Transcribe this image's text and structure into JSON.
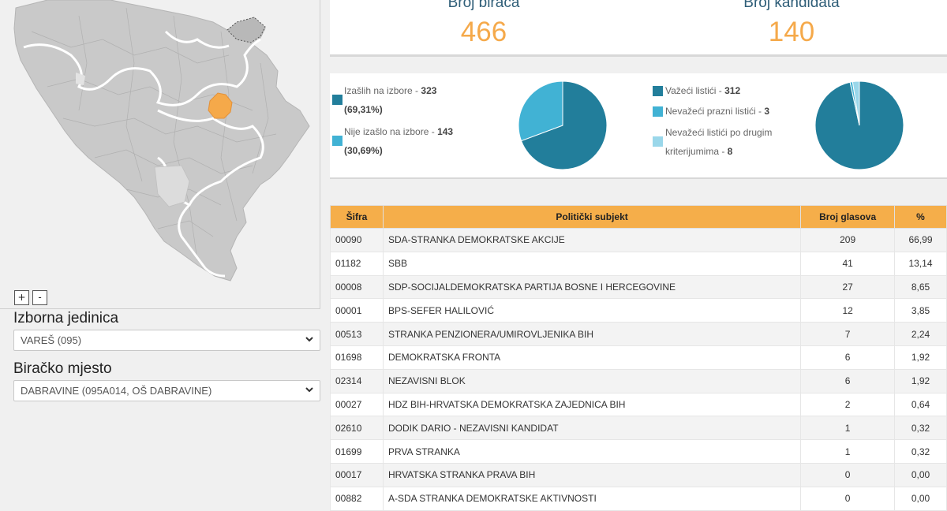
{
  "map": {
    "zoom_in": "+",
    "zoom_out": "-",
    "highlight_color": "#f5a94a"
  },
  "izborna_jedinica": {
    "label": "Izborna jedinica",
    "value": "VAREŠ (095)"
  },
  "biracko_mjesto": {
    "label": "Biračko mjesto",
    "value": "DABRAVINE (095A014, OŠ DABRAVINE)"
  },
  "stats": {
    "voters_label": "Broj birača",
    "voters_value": "466",
    "candidates_label": "Broj kandidata",
    "candidates_value": "140"
  },
  "turnout": {
    "item1_label": "Izašlih na izbore - ",
    "item1_count": "323",
    "item1_pct": "(69,31%)",
    "item2_label": "Nije izašlo na izbore - ",
    "item2_count": "143",
    "item2_pct": "(30,69%)",
    "values": [
      323,
      143
    ],
    "colors": [
      "#227e9b",
      "#41b2d4"
    ]
  },
  "ballots": {
    "item1_label": "Važeći listići - ",
    "item1_count": "312",
    "item2_label": "Nevažeći prazni listići - ",
    "item2_count": "3",
    "item3_label_a": "Nevažeći listići po drugim",
    "item3_label_b": "kriterijumima - ",
    "item3_count": "8",
    "values": [
      312,
      3,
      8
    ],
    "colors": [
      "#227e9b",
      "#41b2d4",
      "#9ad7ea"
    ]
  },
  "table": {
    "headers": {
      "code": "Šifra",
      "subject": "Politički subjekt",
      "votes": "Broj glasova",
      "pct": "%"
    },
    "rows": [
      {
        "code": "00090",
        "subject": "SDA-STRANKA DEMOKRATSKE AKCIJE",
        "votes": "209",
        "pct": "66,99"
      },
      {
        "code": "01182",
        "subject": "SBB",
        "votes": "41",
        "pct": "13,14"
      },
      {
        "code": "00008",
        "subject": "SDP-SOCIJALDEMOKRATSKA PARTIJA BOSNE I HERCEGOVINE",
        "votes": "27",
        "pct": "8,65"
      },
      {
        "code": "00001",
        "subject": "BPS-SEFER HALILOVIĆ",
        "votes": "12",
        "pct": "3,85"
      },
      {
        "code": "00513",
        "subject": "STRANKA PENZIONERA/UMIROVLJENIKA BIH",
        "votes": "7",
        "pct": "2,24"
      },
      {
        "code": "01698",
        "subject": "DEMOKRATSKA FRONTA",
        "votes": "6",
        "pct": "1,92"
      },
      {
        "code": "02314",
        "subject": "NEZAVISNI BLOK",
        "votes": "6",
        "pct": "1,92"
      },
      {
        "code": "00027",
        "subject": "HDZ BIH-HRVATSKA DEMOKRATSKA ZAJEDNICA BIH",
        "votes": "2",
        "pct": "0,64"
      },
      {
        "code": "02610",
        "subject": "DODIK DARIO - NEZAVISNI KANDIDAT",
        "votes": "1",
        "pct": "0,32"
      },
      {
        "code": "01699",
        "subject": "PRVA STRANKA",
        "votes": "1",
        "pct": "0,32"
      },
      {
        "code": "00017",
        "subject": "HRVATSKA STRANKA PRAVA BIH",
        "votes": "0",
        "pct": "0,00"
      },
      {
        "code": "00882",
        "subject": "A-SDA STRANKA DEMOKRATSKE AKTIVNOSTI",
        "votes": "0",
        "pct": "0,00"
      }
    ]
  }
}
